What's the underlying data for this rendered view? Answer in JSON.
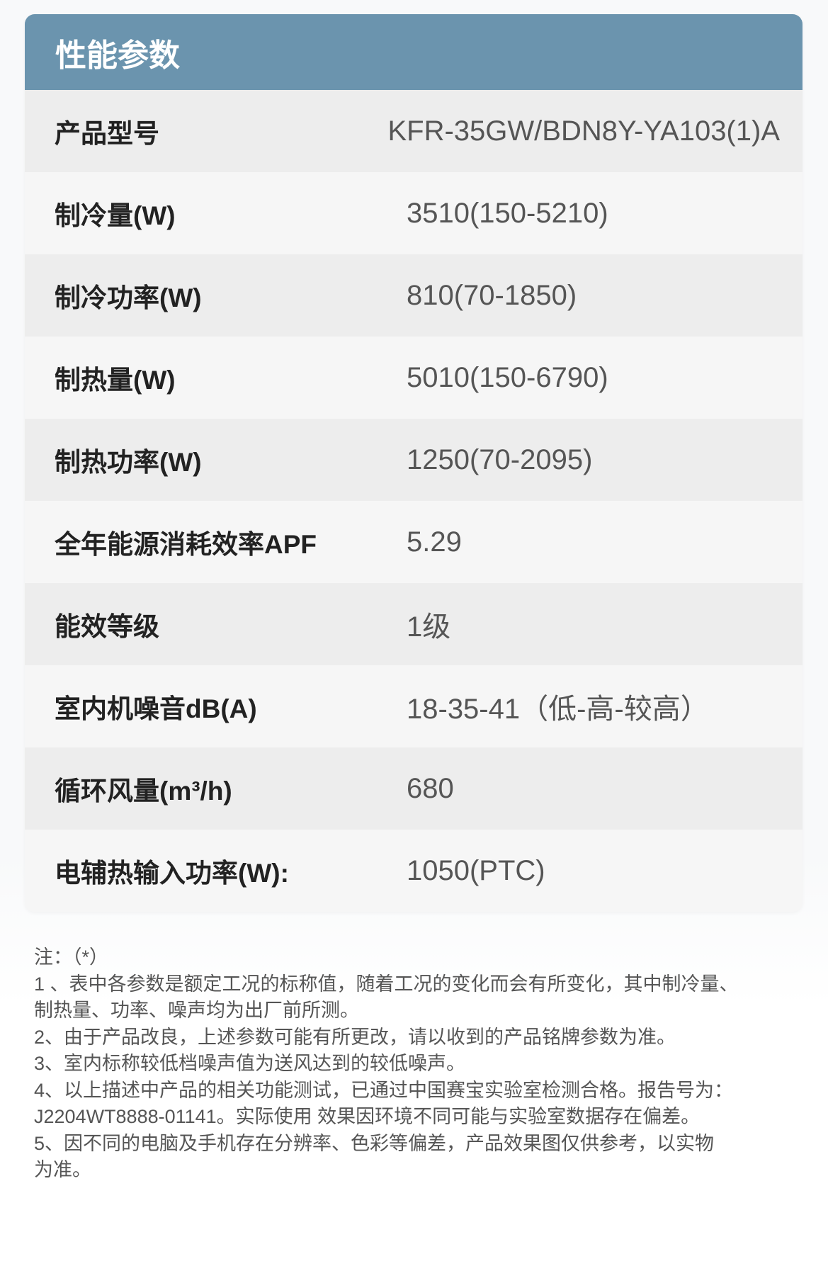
{
  "title": "性能参数",
  "rows": [
    {
      "label": "产品型号",
      "value": "KFR-35GW/BDN8Y-YA103(1)A"
    },
    {
      "label": "制冷量(W)",
      "value": "3510(150-5210)"
    },
    {
      "label": "制冷功率(W)",
      "value": "810(70-1850)"
    },
    {
      "label": "制热量(W)",
      "value": "5010(150-6790)"
    },
    {
      "label": "制热功率(W)",
      "value": "1250(70-2095)"
    },
    {
      "label": "全年能源消耗效率APF",
      "value": "5.29"
    },
    {
      "label": "能效等级",
      "value": "1级"
    },
    {
      "label": "室内机噪音dB(A)",
      "value": "18-35-41（低-高-较高）"
    },
    {
      "label": "循环风量(m³/h)",
      "value": "680"
    },
    {
      "label": "电辅热输入功率(W):",
      "value": "1050(PTC)"
    }
  ],
  "notes": [
    "注：（*）",
    "1 、表中各参数是额定工况的标称值，随着工况的变化而会有所变化，其中制冷量、",
    " 制热量、功率、噪声均为出厂前所测。",
    "2、由于产品改良，上述参数可能有所更改，请以收到的产品铭牌参数为准。",
    "3、室内标称较低档噪声值为送风达到的较低噪声。",
    "4、以上描述中产品的相关功能测试，已通过中国赛宝实验室检测合格。报告号为：",
    "J2204WT8888-01141。实际使用 效果因环境不同可能与实验室数据存在偏差。",
    "5、因不同的电脑及手机存在分辨率、色彩等偏差，产品效果图仅供参考，以实物",
    "为准。"
  ],
  "colors": {
    "header": "#6b94ae",
    "row_dark": "#ededed",
    "row_light": "#f6f6f6"
  }
}
